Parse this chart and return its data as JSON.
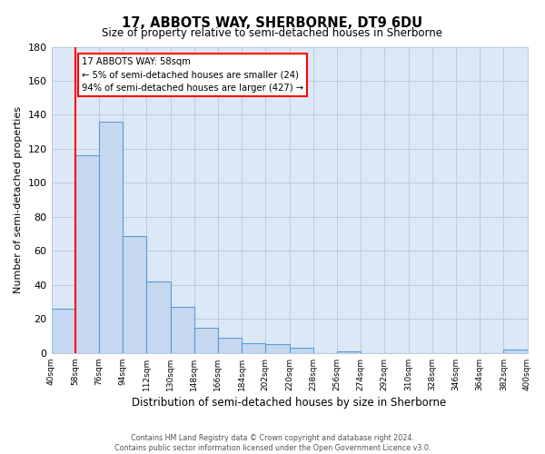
{
  "title": "17, ABBOTS WAY, SHERBORNE, DT9 6DU",
  "subtitle": "Size of property relative to semi-detached houses in Sherborne",
  "xlabel": "Distribution of semi-detached houses by size in Sherborne",
  "ylabel": "Number of semi-detached properties",
  "bar_edges": [
    40,
    58,
    76,
    94,
    112,
    130,
    148,
    166,
    184,
    202,
    220,
    238,
    256,
    274,
    292,
    310,
    328,
    346,
    364,
    382,
    400
  ],
  "bar_values": [
    26,
    116,
    136,
    69,
    42,
    27,
    15,
    9,
    6,
    5,
    3,
    0,
    1,
    0,
    0,
    0,
    0,
    0,
    0,
    2
  ],
  "bar_color": "#c5d8f0",
  "bar_edge_color": "#5b9bd5",
  "property_line_x": 58,
  "property_line_color": "red",
  "annotation_title": "17 ABBOTS WAY: 58sqm",
  "annotation_line1": "← 5% of semi-detached houses are smaller (24)",
  "annotation_line2": "94% of semi-detached houses are larger (427) →",
  "annotation_box_facecolor": "white",
  "annotation_box_edgecolor": "red",
  "ylim": [
    0,
    180
  ],
  "yticks": [
    0,
    20,
    40,
    60,
    80,
    100,
    120,
    140,
    160,
    180
  ],
  "tick_labels": [
    "40sqm",
    "58sqm",
    "76sqm",
    "94sqm",
    "112sqm",
    "130sqm",
    "148sqm",
    "166sqm",
    "184sqm",
    "202sqm",
    "220sqm",
    "238sqm",
    "256sqm",
    "274sqm",
    "292sqm",
    "310sqm",
    "328sqm",
    "346sqm",
    "364sqm",
    "382sqm",
    "400sqm"
  ],
  "footer_line1": "Contains HM Land Registry data © Crown copyright and database right 2024.",
  "footer_line2": "Contains public sector information licensed under the Open Government Licence v3.0.",
  "figure_bg": "#ffffff",
  "axes_bg": "#dce8f5",
  "grid_color": "#b8cde0",
  "spine_color": "#b0c4d8"
}
